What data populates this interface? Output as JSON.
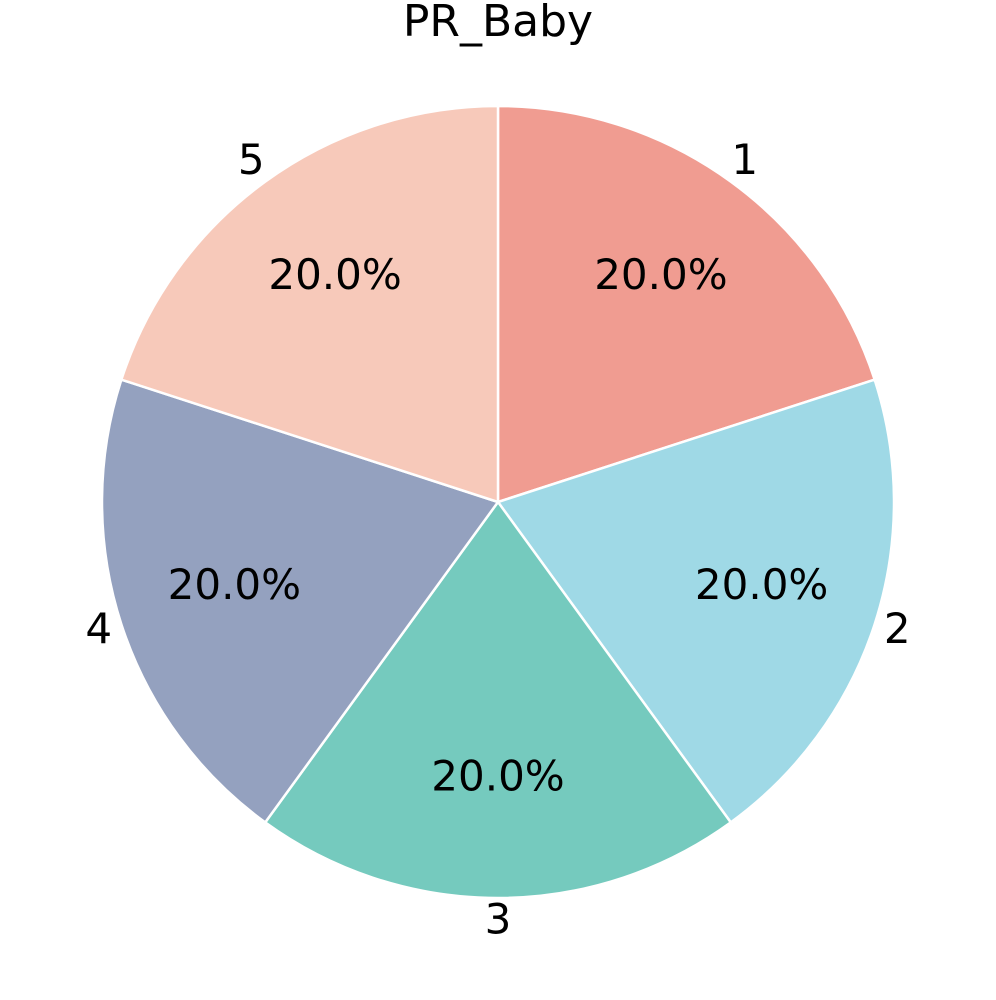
{
  "chart_data": {
    "type": "pie",
    "title": "PR_Baby",
    "categories": [
      "1",
      "2",
      "3",
      "4",
      "5"
    ],
    "values": [
      20,
      20,
      20,
      20,
      20
    ],
    "value_labels": [
      "20.0%",
      "20.0%",
      "20.0%",
      "20.0%",
      "20.0%"
    ],
    "colors": [
      "#f09c91",
      "#9fd9e6",
      "#75cabe",
      "#94a1bf",
      "#f7c9ba"
    ]
  }
}
